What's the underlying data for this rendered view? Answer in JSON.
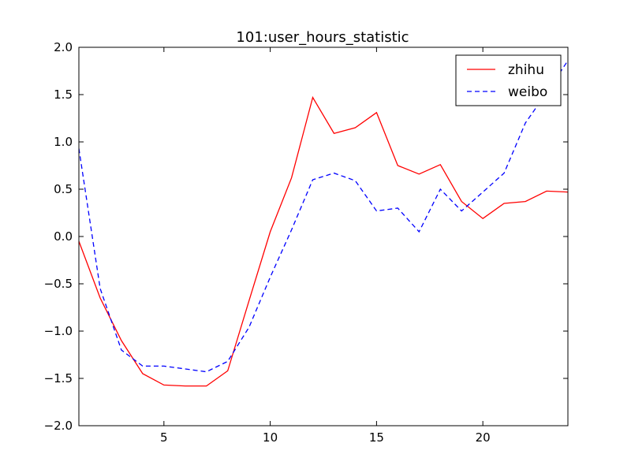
{
  "chart_data": {
    "type": "line",
    "title": "101:user_hours_statistic",
    "xlabel": "",
    "ylabel": "",
    "xlim": [
      1,
      24
    ],
    "ylim": [
      -2.0,
      2.0
    ],
    "xticks": [
      5,
      10,
      15,
      20
    ],
    "xtick_labels": [
      "5",
      "10",
      "15",
      "20"
    ],
    "yticks": [
      -2.0,
      -1.5,
      -1.0,
      -0.5,
      0.0,
      0.5,
      1.0,
      1.5,
      2.0
    ],
    "ytick_labels": [
      "−2.0",
      "−1.5",
      "−1.0",
      "−0.5",
      "0.0",
      "0.5",
      "1.0",
      "1.5",
      "2.0"
    ],
    "grid": false,
    "legend_position": "top-right",
    "x": [
      1,
      2,
      3,
      4,
      5,
      6,
      7,
      8,
      9,
      10,
      11,
      12,
      13,
      14,
      15,
      16,
      17,
      18,
      19,
      20,
      21,
      22,
      23,
      24
    ],
    "series": [
      {
        "name": "zhihu",
        "color": "#ff0000",
        "style": "solid",
        "values": [
          -0.05,
          -0.65,
          -1.1,
          -1.45,
          -1.57,
          -1.58,
          -1.58,
          -1.42,
          -0.68,
          0.05,
          0.62,
          1.47,
          1.09,
          1.15,
          1.31,
          0.75,
          0.66,
          0.76,
          0.37,
          0.19,
          0.35,
          0.37,
          0.48,
          0.47
        ]
      },
      {
        "name": "weibo",
        "color": "#0000ff",
        "style": "dashed",
        "values": [
          0.93,
          -0.55,
          -1.2,
          -1.37,
          -1.37,
          -1.4,
          -1.43,
          -1.32,
          -0.96,
          -0.43,
          0.07,
          0.6,
          0.67,
          0.59,
          0.27,
          0.3,
          0.05,
          0.5,
          0.27,
          0.47,
          0.67,
          1.2,
          1.52,
          1.86
        ]
      }
    ]
  }
}
